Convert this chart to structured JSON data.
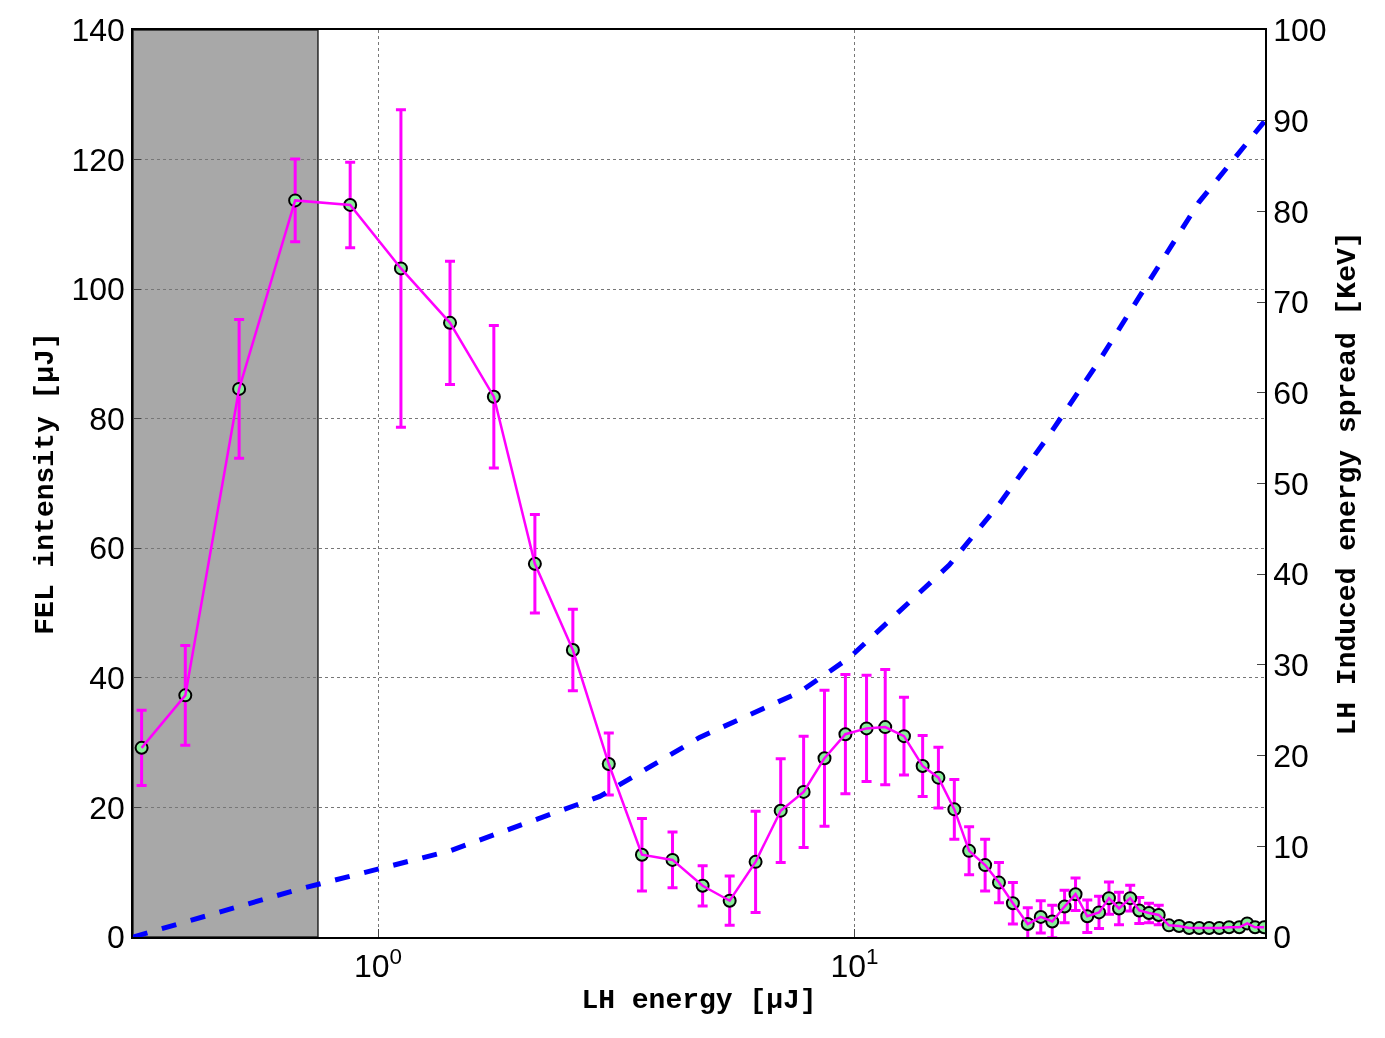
{
  "chart_data": {
    "type": "line",
    "xlabel": "LH energy [μJ]",
    "ylabel": "FEL intensity [μJ]",
    "y2label": "LH Induced energy spread [KeV]",
    "log": "x",
    "grid": true,
    "marker": "circle",
    "xlim": [
      0.306,
      72.7
    ],
    "xticks": [
      {
        "value": 1,
        "label": "10$^{0}$"
      },
      {
        "value": 10,
        "label": "10$^{1}$"
      }
    ],
    "ylim": [
      0,
      140
    ],
    "yticks": [
      0,
      20,
      40,
      60,
      80,
      100,
      120,
      140
    ],
    "y2lim": [
      0,
      100
    ],
    "y2ticks": [
      0,
      10,
      20,
      30,
      40,
      50,
      60,
      70,
      80,
      90,
      100
    ],
    "bands": [
      {
        "axis": "x",
        "from": 0.306,
        "to": 0.748,
        "color": "#999999"
      }
    ],
    "series": [
      {
        "color": "#ff00ff",
        "x": [
          0.319,
          0.394,
          0.511,
          0.67,
          0.874,
          1.117,
          1.416,
          1.75,
          2.134,
          2.564,
          3.05,
          3.58,
          4.15,
          4.8,
          5.47,
          6.2,
          7.0,
          7.82,
          8.65,
          9.57,
          10.6,
          11.6,
          12.7,
          13.9,
          15.0,
          16.2,
          17.4,
          18.8,
          20.1,
          21.5,
          23.1,
          24.6,
          26.0,
          27.6,
          29.1,
          30.8,
          32.6,
          34.2,
          35.9,
          37.9,
          39.6,
          41.5,
          43.5,
          45.7,
          48.0,
          50.4,
          52.9,
          55.5,
          58.3,
          61.1,
          64.2,
          66.7,
          69.3,
          72.4
        ],
        "values": [
          29.2,
          37.3,
          84.6,
          113.7,
          113.0,
          103.2,
          94.8,
          83.4,
          57.6,
          44.3,
          26.7,
          12.7,
          11.9,
          7.9,
          5.6,
          11.6,
          19.5,
          22.4,
          27.6,
          31.3,
          32.2,
          32.4,
          31.0,
          26.4,
          24.6,
          19.7,
          13.3,
          11.1,
          8.4,
          5.2,
          2.0,
          3.1,
          2.4,
          4.7,
          6.6,
          3.2,
          3.8,
          6.0,
          4.4,
          6.0,
          4.1,
          3.7,
          3.4,
          1.8,
          1.7,
          1.4,
          1.4,
          1.4,
          1.4,
          1.5,
          1.5,
          2.1,
          1.5,
          1.5
        ],
        "errors": [
          5.8,
          7.7,
          10.7,
          6.4,
          6.6,
          24.5,
          9.5,
          11,
          7.6,
          6.3,
          4.8,
          5.6,
          4.3,
          3.1,
          3.8,
          7.8,
          8,
          8.6,
          10.5,
          9.2,
          8.2,
          8.9,
          6,
          4.7,
          4.7,
          4.6,
          3.7,
          4,
          3.1,
          3.2,
          2.5,
          2.5,
          2.5,
          2.5,
          2.5,
          2.5,
          2.5,
          2.5,
          2.5,
          2,
          2,
          1.5,
          1.5,
          null,
          null,
          null,
          null,
          null,
          null,
          null,
          null,
          null,
          null,
          null
        ]
      },
      {
        "color": "#0000ff",
        "axis": "y2",
        "marker": "none",
        "line_style": "dashed",
        "x": [
          0.306,
          0.686,
          1.415,
          2.92,
          4.73,
          7.67,
          9.76,
          15.8,
          20.1,
          25.6,
          32.6,
          41.4,
          52.8,
          72.7
        ],
        "values": [
          0,
          5.3,
          9.5,
          15.5,
          22,
          27,
          30.8,
          41,
          47.7,
          55.3,
          63.5,
          72.2,
          81,
          90
        ]
      }
    ]
  }
}
